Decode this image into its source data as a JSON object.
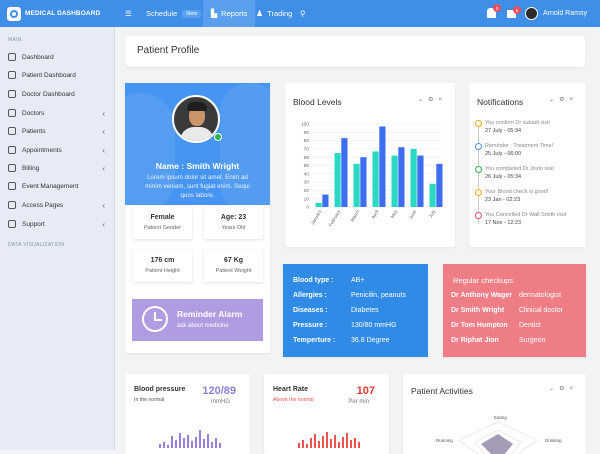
{
  "topbar": {
    "brand": "MEDICAL DASHBOARD",
    "items": [
      {
        "label": "Schedule",
        "badge": "New"
      },
      {
        "label": "Reports"
      },
      {
        "label": "Trading"
      }
    ],
    "notif_count_1": "0",
    "notif_count_2": "0",
    "user": "Arnold Ramsy"
  },
  "sidebar": {
    "main_heading": "MAIN",
    "items": [
      {
        "label": "Dashboard"
      },
      {
        "label": "Patient Dashboard"
      },
      {
        "label": "Doctor Dashboard"
      },
      {
        "label": "Doctors"
      },
      {
        "label": "Patients"
      },
      {
        "label": "Appointments"
      },
      {
        "label": "Billing"
      },
      {
        "label": "Event Management"
      },
      {
        "label": "Access Pages"
      },
      {
        "label": "Support"
      }
    ],
    "viz_heading": "DATA VISUALIZATION"
  },
  "page": {
    "title": "Patient Profile"
  },
  "profile": {
    "name": "Name : Smith Wright",
    "description": "Lorem ipsum dolor sit amet. Enim ad minim veniam, sunt fugiat enim. Sequi quos labore.",
    "stats": [
      {
        "value": "Female",
        "label": "Patient Gender"
      },
      {
        "value": "Age: 23",
        "label": "Years Old"
      },
      {
        "value": "176 cm",
        "label": "Patient Height"
      },
      {
        "value": "67 Kg",
        "label": "Patient Weight"
      }
    ],
    "alarm": {
      "title": "Reminder Alarm",
      "subtitle": "ask about medicine"
    }
  },
  "blood_levels": {
    "title": "Blood Levels"
  },
  "chart_data": {
    "type": "bar",
    "title": "Blood Levels",
    "categories": [
      "January",
      "February",
      "March",
      "April",
      "May",
      "June",
      "July"
    ],
    "series": [
      {
        "values": [
          5,
          65,
          52,
          67,
          62,
          70,
          28
        ],
        "color": "#2bd9c3"
      },
      {
        "values": [
          15,
          83,
          60,
          97,
          72,
          62,
          52
        ],
        "color": "#3d6ef2"
      }
    ],
    "ylim": [
      0,
      100
    ],
    "yticks": [
      0,
      10,
      20,
      30,
      40,
      50,
      60,
      70,
      80,
      90,
      100
    ],
    "grid": true
  },
  "notifications": {
    "title": "Notifications",
    "items": [
      {
        "text": "You confirm Dr subadi visit",
        "date": "27 July - 05:34",
        "color": "#f5a623"
      },
      {
        "text": "Reminder : Treatment Time!",
        "date": "25 July - 06:00",
        "color": "#4a90e2"
      },
      {
        "text": "You completed Dr Jovin visit",
        "date": "26 July - 05:34",
        "color": "#2fb24a"
      },
      {
        "text": "Your Blood check is good!",
        "date": "23 Jan - 02:23",
        "color": "#f5a623"
      },
      {
        "text": "You Cancelled Dr Wall Smith visit",
        "date": "17 Nov - 12:23",
        "color": "#ef4c5e"
      }
    ]
  },
  "blood_info": [
    {
      "key": "Blood type :",
      "value": "AB+"
    },
    {
      "key": "Allergies :",
      "value": "Penicilin, peanuts"
    },
    {
      "key": "Diseases :",
      "value": "Diabetes"
    },
    {
      "key": "Pressure :",
      "value": "130/80 mmHG"
    },
    {
      "key": "Temperture :",
      "value": "36.8 Degree"
    }
  ],
  "checkups": {
    "title": "Regular checkups",
    "rows": [
      {
        "name": "Dr Anthony Wager",
        "role": "dermatologist"
      },
      {
        "name": "Dr Smith Wright",
        "role": "Clinical doctor"
      },
      {
        "name": "Dr Tom Humpton",
        "role": "Dentist"
      },
      {
        "name": "Dr Riphat Jion",
        "role": "Surgeon"
      }
    ]
  },
  "blood_pressure": {
    "title": "Blood pressure",
    "status": "In the normal",
    "value": "120/89",
    "unit": "mmHG",
    "color": "#9b7fe0"
  },
  "heart_rate": {
    "title": "Heart Rate",
    "status": "Above the normal",
    "value": "107",
    "unit": "Per min",
    "color": "#ef5350"
  },
  "patient_activities": {
    "title": "Patient Activities",
    "labels": [
      "Eating",
      "Drinking",
      "Running"
    ]
  }
}
